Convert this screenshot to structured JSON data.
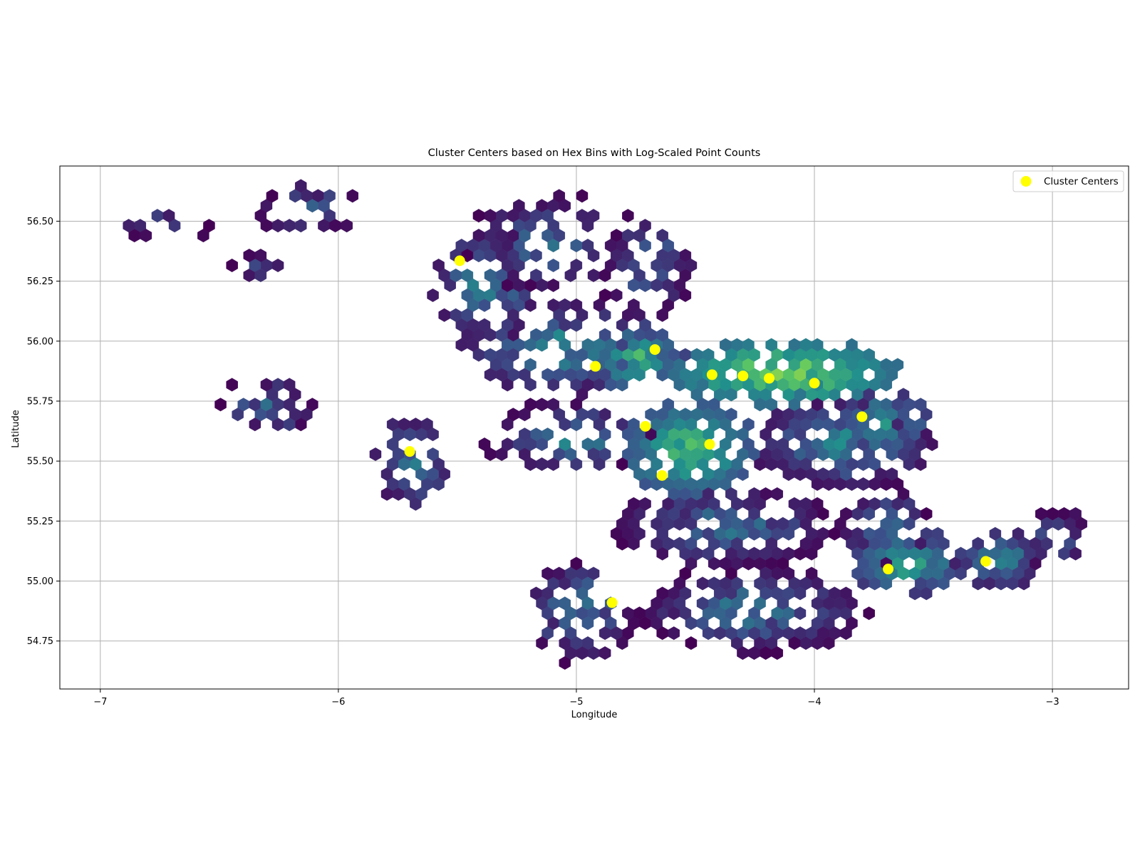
{
  "chart_data": {
    "type": "scatter",
    "title": "Cluster Centers based on Hex Bins with Log-Scaled Point Counts",
    "xlabel": "Longitude",
    "ylabel": "Latitude",
    "xlim": [
      -7.17,
      -2.68
    ],
    "ylim": [
      54.55,
      56.73
    ],
    "xticks": [
      -7,
      -6,
      -5,
      -4,
      -3
    ],
    "xtick_labels": [
      "−7",
      "−6",
      "−5",
      "−4",
      "−3"
    ],
    "yticks": [
      54.75,
      55.0,
      55.25,
      55.5,
      55.75,
      56.0,
      56.25,
      56.5
    ],
    "ytick_labels": [
      "54.75",
      "55.00",
      "55.25",
      "55.50",
      "55.75",
      "56.00",
      "56.25",
      "56.50"
    ],
    "grid": true,
    "legend": {
      "position": "upper right",
      "entries": [
        "Cluster Centers"
      ]
    },
    "colormap": [
      "#440154",
      "#3b528b",
      "#21918c",
      "#5ec962",
      "#fde725"
    ],
    "hexbin_regions": [
      {
        "lon": [
          -6.95,
          -6.55
        ],
        "lat": [
          56.42,
          56.55
        ],
        "n": 14,
        "level": [
          0.0,
          0.35
        ]
      },
      {
        "lon": [
          -6.45,
          -6.2
        ],
        "lat": [
          56.27,
          56.35
        ],
        "n": 10,
        "level": [
          0.0,
          0.3
        ]
      },
      {
        "lon": [
          -6.35,
          -5.9
        ],
        "lat": [
          56.45,
          56.66
        ],
        "n": 22,
        "level": [
          0.0,
          0.45
        ]
      },
      {
        "lon": [
          -6.5,
          -6.1
        ],
        "lat": [
          55.6,
          55.85
        ],
        "n": 26,
        "level": [
          0.0,
          0.45
        ]
      },
      {
        "lon": [
          -5.85,
          -5.5
        ],
        "lat": [
          55.3,
          55.7
        ],
        "n": 40,
        "level": [
          0.05,
          0.5
        ]
      },
      {
        "lon": [
          -5.6,
          -5.15
        ],
        "lat": [
          56.0,
          56.45
        ],
        "n": 70,
        "level": [
          0.05,
          0.6
        ]
      },
      {
        "lon": [
          -5.45,
          -4.8
        ],
        "lat": [
          56.2,
          56.62
        ],
        "n": 65,
        "level": [
          0.0,
          0.45
        ]
      },
      {
        "lon": [
          -5.4,
          -4.65
        ],
        "lat": [
          55.45,
          55.75
        ],
        "n": 60,
        "level": [
          0.0,
          0.55
        ]
      },
      {
        "lon": [
          -5.5,
          -4.6
        ],
        "lat": [
          55.78,
          56.15
        ],
        "n": 110,
        "level": [
          0.05,
          0.6
        ]
      },
      {
        "lon": [
          -4.9,
          -4.5
        ],
        "lat": [
          56.1,
          56.55
        ],
        "n": 45,
        "level": [
          0.0,
          0.45
        ]
      },
      {
        "lon": [
          -4.95,
          -4.55
        ],
        "lat": [
          55.8,
          56.05
        ],
        "n": 70,
        "level": [
          0.2,
          0.75
        ]
      },
      {
        "lon": [
          -4.6,
          -3.65
        ],
        "lat": [
          55.75,
          55.99
        ],
        "n": 230,
        "level": [
          0.35,
          0.92
        ]
      },
      {
        "lon": [
          -4.8,
          -4.25
        ],
        "lat": [
          55.35,
          55.75
        ],
        "n": 150,
        "level": [
          0.25,
          0.8
        ]
      },
      {
        "lon": [
          -4.25,
          -3.5
        ],
        "lat": [
          55.4,
          55.75
        ],
        "n": 150,
        "level": [
          0.05,
          0.6
        ]
      },
      {
        "lon": [
          -3.9,
          -3.5
        ],
        "lat": [
          55.55,
          55.78
        ],
        "n": 60,
        "level": [
          0.15,
          0.6
        ]
      },
      {
        "lon": [
          -4.85,
          -3.9
        ],
        "lat": [
          55.05,
          55.4
        ],
        "n": 160,
        "level": [
          0.0,
          0.5
        ]
      },
      {
        "lon": [
          -3.9,
          -3.5
        ],
        "lat": [
          55.05,
          55.4
        ],
        "n": 60,
        "level": [
          0.0,
          0.5
        ]
      },
      {
        "lon": [
          -5.2,
          -4.75
        ],
        "lat": [
          54.65,
          55.1
        ],
        "n": 70,
        "level": [
          0.0,
          0.55
        ]
      },
      {
        "lon": [
          -4.75,
          -3.75
        ],
        "lat": [
          54.7,
          55.05
        ],
        "n": 150,
        "level": [
          0.0,
          0.55
        ]
      },
      {
        "lon": [
          -3.85,
          -3.35
        ],
        "lat": [
          54.95,
          55.2
        ],
        "n": 90,
        "level": [
          0.15,
          0.7
        ]
      },
      {
        "lon": [
          -3.4,
          -3.05
        ],
        "lat": [
          54.98,
          55.2
        ],
        "n": 60,
        "level": [
          0.1,
          0.55
        ]
      },
      {
        "lon": [
          -3.15,
          -2.85
        ],
        "lat": [
          55.05,
          55.3
        ],
        "n": 24,
        "level": [
          0.0,
          0.45
        ]
      }
    ],
    "series": [
      {
        "name": "Cluster Centers",
        "color": "#ffff00",
        "points": [
          [
            -5.49,
            56.335
          ],
          [
            -4.67,
            55.965
          ],
          [
            -4.92,
            55.895
          ],
          [
            -4.43,
            55.86
          ],
          [
            -4.3,
            55.855
          ],
          [
            -4.19,
            55.845
          ],
          [
            -4.0,
            55.825
          ],
          [
            -3.8,
            55.685
          ],
          [
            -4.71,
            55.645
          ],
          [
            -4.44,
            55.57
          ],
          [
            -5.7,
            55.54
          ],
          [
            -4.64,
            55.44
          ],
          [
            -3.69,
            55.05
          ],
          [
            -3.28,
            55.082
          ],
          [
            -4.85,
            54.91
          ]
        ]
      }
    ]
  }
}
